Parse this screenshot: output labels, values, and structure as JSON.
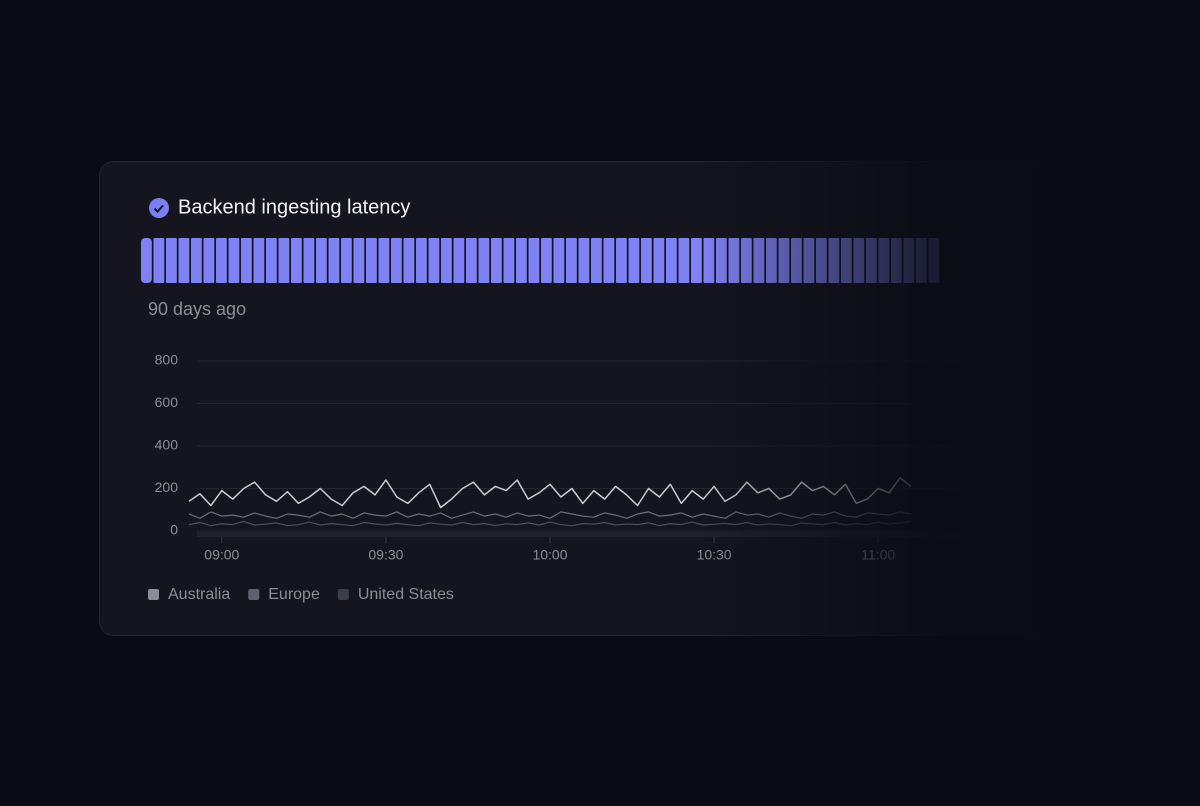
{
  "chart_data": {
    "type": "line",
    "title": "Backend ingesting latency",
    "subtitle": "90 days ago",
    "x": [
      "08:54",
      "08:56",
      "08:58",
      "09:00",
      "09:02",
      "09:04",
      "09:06",
      "09:08",
      "09:10",
      "09:12",
      "09:14",
      "09:16",
      "09:18",
      "09:20",
      "09:22",
      "09:24",
      "09:26",
      "09:28",
      "09:30",
      "09:32",
      "09:34",
      "09:36",
      "09:38",
      "09:40",
      "09:42",
      "09:44",
      "09:46",
      "09:48",
      "09:50",
      "09:52",
      "09:54",
      "09:56",
      "09:58",
      "10:00",
      "10:02",
      "10:04",
      "10:06",
      "10:08",
      "10:10",
      "10:12",
      "10:14",
      "10:16",
      "10:18",
      "10:20",
      "10:22",
      "10:24",
      "10:26",
      "10:28",
      "10:30",
      "10:32",
      "10:34",
      "10:36",
      "10:38",
      "10:40",
      "10:42",
      "10:44",
      "10:46",
      "10:48",
      "10:50",
      "10:52",
      "10:54",
      "10:56",
      "10:58",
      "11:00",
      "11:02",
      "11:04",
      "11:06"
    ],
    "xlim": [
      "08:54",
      "11:06"
    ],
    "xticks": [
      "09:00",
      "09:30",
      "10:00",
      "10:30",
      "11:00"
    ],
    "ylim": [
      0,
      800
    ],
    "yticks": [
      0,
      200,
      400,
      600,
      800
    ],
    "grid": true,
    "series": [
      {
        "name": "Australia",
        "color": "#c9cbd3",
        "legend_color": "#8a8d99",
        "values": [
          140,
          175,
          120,
          190,
          150,
          200,
          230,
          170,
          140,
          185,
          130,
          160,
          200,
          150,
          120,
          180,
          210,
          170,
          240,
          160,
          130,
          180,
          220,
          110,
          150,
          200,
          230,
          170,
          210,
          190,
          240,
          150,
          180,
          220,
          160,
          200,
          130,
          190,
          150,
          210,
          170,
          120,
          200,
          160,
          220,
          130,
          190,
          150,
          210,
          140,
          170,
          230,
          180,
          200,
          150,
          170,
          230,
          190,
          210,
          170,
          220,
          130,
          150,
          200,
          180,
          250,
          210
        ]
      },
      {
        "name": "Europe",
        "color": "#6b6e7c",
        "legend_color": "#5e6170",
        "values": [
          80,
          60,
          90,
          70,
          75,
          65,
          85,
          70,
          60,
          80,
          75,
          65,
          90,
          70,
          80,
          60,
          85,
          75,
          70,
          90,
          65,
          80,
          70,
          85,
          60,
          75,
          90,
          70,
          80,
          65,
          85,
          70,
          75,
          60,
          90,
          80,
          70,
          65,
          85,
          75,
          60,
          80,
          90,
          70,
          75,
          85,
          65,
          80,
          70,
          60,
          90,
          75,
          80,
          65,
          85,
          70,
          60,
          80,
          75,
          90,
          70,
          65,
          85,
          80,
          75,
          90,
          80
        ]
      },
      {
        "name": "United States",
        "color": "#4d505d",
        "legend_color": "#3a3d4a",
        "values": [
          30,
          40,
          25,
          35,
          30,
          45,
          28,
          32,
          38,
          25,
          30,
          42,
          28,
          35,
          30,
          25,
          40,
          33,
          28,
          36,
          30,
          25,
          38,
          32,
          28,
          40,
          30,
          35,
          26,
          34,
          30,
          38,
          28,
          42,
          30,
          25,
          35,
          32,
          40,
          28,
          33,
          30,
          38,
          25,
          35,
          30,
          42,
          28,
          32,
          36,
          30,
          40,
          28,
          34,
          30,
          25,
          38,
          33,
          30,
          40,
          28,
          35,
          30,
          42,
          32,
          38,
          45
        ]
      }
    ]
  }
}
